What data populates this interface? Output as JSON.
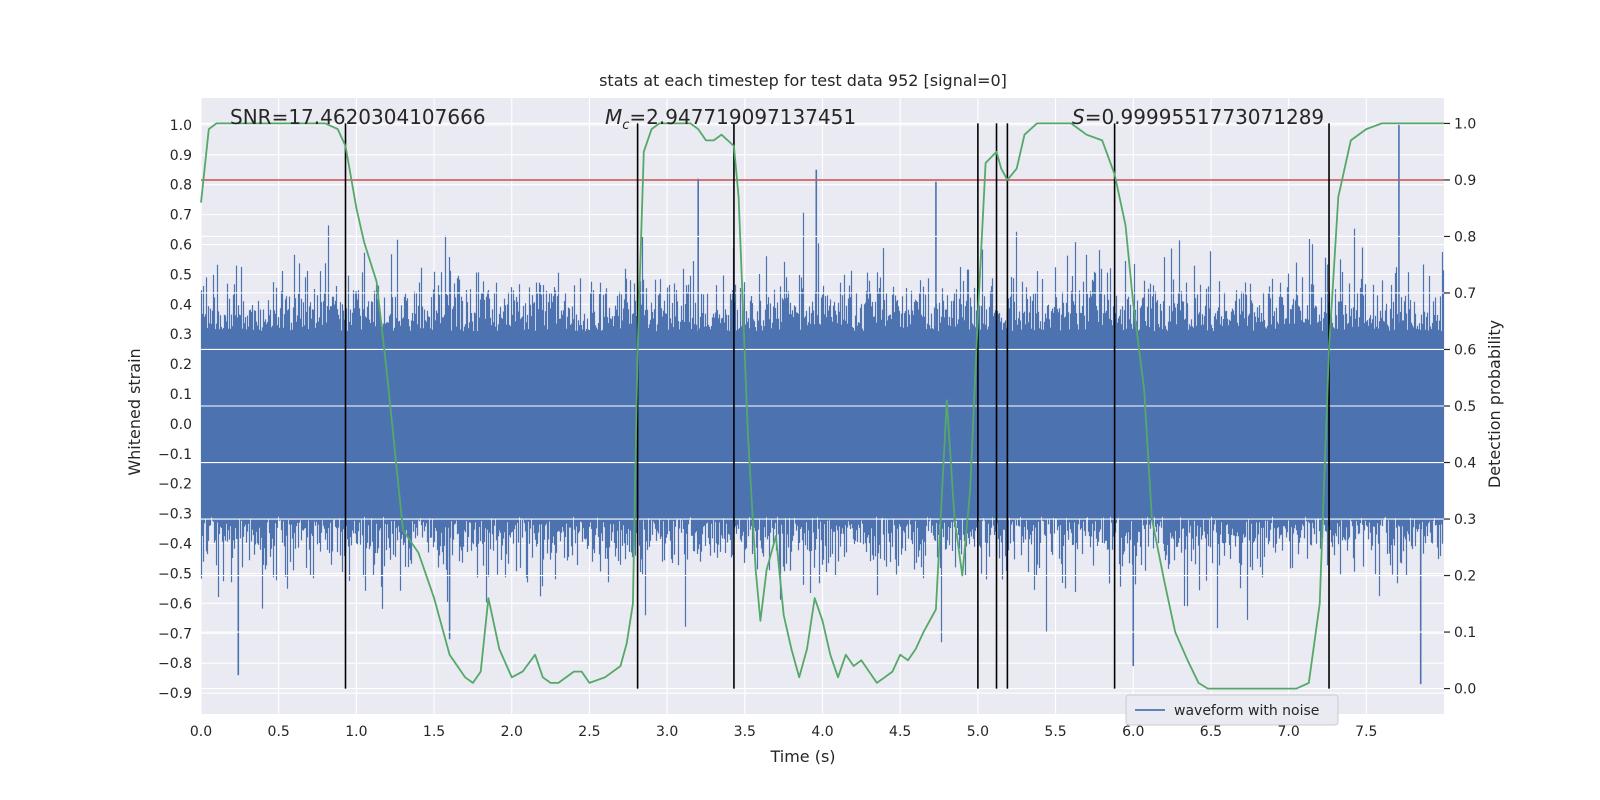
{
  "chart_data": {
    "type": "line",
    "title": "stats at each timestep for test data 952 [signal=0]",
    "xlabel": "Time (s)",
    "ylabel_left": "Whitened strain",
    "ylabel_right": "Detection probability",
    "xlim": [
      0.0,
      8.0
    ],
    "ylim_left": [
      -0.97,
      1.09
    ],
    "ylim_right": [
      -0.045,
      1.045
    ],
    "x_ticks": [
      0.0,
      0.5,
      1.0,
      1.5,
      2.0,
      2.5,
      3.0,
      3.5,
      4.0,
      4.5,
      5.0,
      5.5,
      6.0,
      6.5,
      7.0,
      7.5
    ],
    "x_tick_labels": [
      "0.0",
      "0.5",
      "1.0",
      "1.5",
      "2.0",
      "2.5",
      "3.0",
      "3.5",
      "4.0",
      "4.5",
      "5.0",
      "5.5",
      "6.0",
      "6.5",
      "7.0",
      "7.5"
    ],
    "y_ticks_left": [
      -0.9,
      -0.8,
      -0.7,
      -0.6,
      -0.5,
      -0.4,
      -0.3,
      -0.2,
      -0.1,
      0.0,
      0.1,
      0.2,
      0.3,
      0.4,
      0.5,
      0.6,
      0.7,
      0.8,
      0.9,
      1.0
    ],
    "y_tick_labels_left": [
      "−0.9",
      "−0.8",
      "−0.7",
      "−0.6",
      "−0.5",
      "−0.4",
      "−0.3",
      "−0.2",
      "−0.1",
      "0.0",
      "0.1",
      "0.2",
      "0.3",
      "0.4",
      "0.5",
      "0.6",
      "0.7",
      "0.8",
      "0.9",
      "1.0"
    ],
    "y_ticks_right": [
      0.0,
      0.1,
      0.2,
      0.3,
      0.4,
      0.5,
      0.6,
      0.7,
      0.8,
      0.9,
      1.0
    ],
    "y_tick_labels_right": [
      "0.0",
      "0.1",
      "0.2",
      "0.3",
      "0.4",
      "0.5",
      "0.6",
      "0.7",
      "0.8",
      "0.9",
      "1.0"
    ],
    "grid": true,
    "legend_position": "lower-right",
    "legend": [
      {
        "label": "waveform with noise",
        "color": "#4c72b0"
      }
    ],
    "annotations": [
      {
        "prefix": "SNR",
        "sub": "",
        "text": "=17.4620304107666"
      },
      {
        "prefix": "M",
        "sub": "c",
        "text": "=2.947719097137451"
      },
      {
        "prefix": "S",
        "sub": "",
        "text": "=0.9999551773071289"
      }
    ],
    "threshold_right": 0.9,
    "threshold_color": "#c44e52",
    "event_lines_x": [
      0.93,
      2.81,
      3.43,
      5.0,
      5.12,
      5.19,
      5.88,
      7.26
    ],
    "event_lines_color": "#000000",
    "waveform": {
      "name": "waveform with noise",
      "color": "#4c72b0",
      "duration": 8.0,
      "samples": 16384,
      "core_range": [
        -0.31,
        0.31
      ],
      "peak_samples": [
        {
          "x": 0.24,
          "y": -0.84
        },
        {
          "x": 3.96,
          "y": 0.85
        },
        {
          "x": 7.71,
          "y": 1.0
        },
        {
          "x": 7.85,
          "y": -0.87
        },
        {
          "x": 4.73,
          "y": 0.81
        },
        {
          "x": 3.2,
          "y": 0.82
        },
        {
          "x": 1.6,
          "y": -0.72
        },
        {
          "x": 6.0,
          "y": -0.81
        }
      ]
    },
    "detection_probability": {
      "color": "#55a868",
      "x": [
        0.0,
        0.05,
        0.1,
        0.2,
        0.4,
        0.6,
        0.8,
        0.88,
        0.93,
        1.0,
        1.05,
        1.13,
        1.2,
        1.3,
        1.4,
        1.5,
        1.6,
        1.7,
        1.75,
        1.8,
        1.85,
        1.92,
        2.0,
        2.07,
        2.15,
        2.2,
        2.25,
        2.3,
        2.4,
        2.45,
        2.5,
        2.6,
        2.7,
        2.74,
        2.78,
        2.81,
        2.85,
        2.9,
        2.95,
        3.0,
        3.1,
        3.15,
        3.2,
        3.25,
        3.3,
        3.35,
        3.43,
        3.46,
        3.52,
        3.57,
        3.6,
        3.64,
        3.7,
        3.75,
        3.8,
        3.85,
        3.9,
        3.95,
        4.0,
        4.05,
        4.1,
        4.15,
        4.2,
        4.25,
        4.3,
        4.35,
        4.4,
        4.45,
        4.5,
        4.55,
        4.6,
        4.65,
        4.73,
        4.8,
        4.85,
        4.9,
        4.95,
        5.0,
        5.05,
        5.12,
        5.15,
        5.19,
        5.25,
        5.3,
        5.38,
        5.45,
        5.5,
        5.6,
        5.7,
        5.8,
        5.88,
        5.95,
        6.0,
        6.07,
        6.12,
        6.2,
        6.27,
        6.35,
        6.42,
        6.48,
        6.55,
        6.6,
        6.7,
        6.8,
        6.9,
        7.0,
        7.05,
        7.13,
        7.2,
        7.26,
        7.32,
        7.4,
        7.5,
        7.6,
        7.7,
        7.8,
        7.9,
        8.0
      ],
      "y": [
        0.86,
        0.99,
        1.0,
        1.0,
        1.0,
        1.0,
        1.0,
        0.99,
        0.96,
        0.85,
        0.79,
        0.72,
        0.55,
        0.28,
        0.24,
        0.16,
        0.06,
        0.02,
        0.01,
        0.03,
        0.16,
        0.07,
        0.02,
        0.03,
        0.06,
        0.02,
        0.01,
        0.01,
        0.03,
        0.03,
        0.01,
        0.02,
        0.04,
        0.08,
        0.15,
        0.6,
        0.95,
        0.99,
        1.0,
        1.0,
        1.0,
        1.0,
        0.99,
        0.97,
        0.97,
        0.98,
        0.96,
        0.87,
        0.45,
        0.21,
        0.12,
        0.21,
        0.27,
        0.13,
        0.07,
        0.02,
        0.07,
        0.16,
        0.12,
        0.06,
        0.02,
        0.06,
        0.04,
        0.05,
        0.03,
        0.01,
        0.02,
        0.03,
        0.06,
        0.05,
        0.07,
        0.1,
        0.14,
        0.51,
        0.3,
        0.2,
        0.35,
        0.66,
        0.93,
        0.95,
        0.92,
        0.9,
        0.92,
        0.98,
        1.0,
        1.0,
        1.0,
        1.0,
        0.98,
        0.97,
        0.91,
        0.82,
        0.68,
        0.53,
        0.3,
        0.19,
        0.1,
        0.05,
        0.01,
        0.0,
        0.0,
        0.0,
        0.0,
        0.0,
        0.0,
        0.0,
        0.0,
        0.01,
        0.15,
        0.6,
        0.87,
        0.97,
        0.99,
        1.0,
        1.0,
        1.0,
        1.0,
        1.0
      ]
    }
  }
}
